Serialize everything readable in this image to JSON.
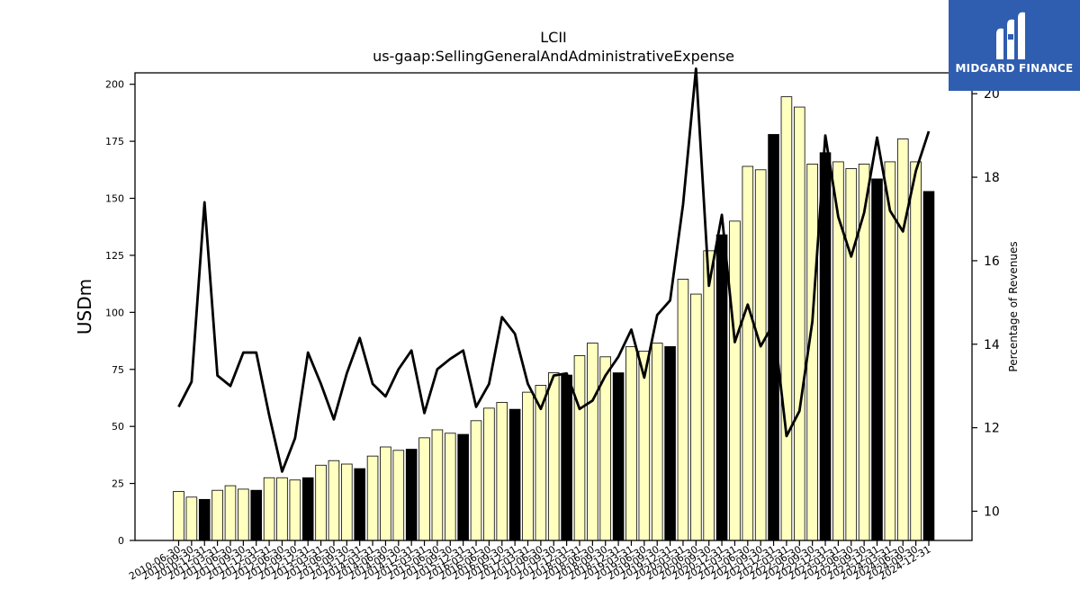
{
  "brand": {
    "name": "MIDGARD FINANCE",
    "icon": "midgard-logo-icon",
    "background": "#2f5db0"
  },
  "chart_data": {
    "type": "bar",
    "title": "LCII",
    "subtitle": "us-gaap:SellingGeneralAndAdministrativeExpense",
    "ylabel": "USDm",
    "y2label": "Percentage of Revenues",
    "ylim": [
      0,
      205
    ],
    "y2lim": [
      9.3,
      20.5
    ],
    "yticks": [
      0,
      25,
      50,
      75,
      100,
      125,
      150,
      175,
      200
    ],
    "y2ticks": [
      10,
      12,
      14,
      16,
      18,
      20
    ],
    "colors": {
      "quarter_bar": "#ffffc0",
      "annual_bar": "#000000",
      "line": "#000000"
    },
    "categories": [
      "2010-06-30",
      "2010-09-30",
      "2010-12-31",
      "2011-03-31",
      "2011-06-30",
      "2011-09-30",
      "2011-12-31",
      "2012-03-31",
      "2012-06-30",
      "2012-09-30",
      "2012-12-31",
      "2013-03-31",
      "2013-06-30",
      "2013-09-30",
      "2013-12-31",
      "2014-03-31",
      "2014-06-30",
      "2014-09-30",
      "2014-12-31",
      "2015-03-31",
      "2015-06-30",
      "2015-09-30",
      "2015-12-31",
      "2016-03-31",
      "2016-06-30",
      "2016-09-30",
      "2016-12-31",
      "2017-03-31",
      "2017-06-30",
      "2017-09-30",
      "2017-12-31",
      "2018-03-31",
      "2018-06-30",
      "2018-09-30",
      "2018-12-31",
      "2019-03-31",
      "2019-06-30",
      "2019-09-30",
      "2019-12-31",
      "2020-03-31",
      "2020-06-30",
      "2020-09-30",
      "2020-12-31",
      "2021-03-31",
      "2021-06-30",
      "2021-09-30",
      "2021-12-31",
      "2022-03-31",
      "2022-06-30",
      "2022-09-30",
      "2022-12-31",
      "2023-03-31",
      "2023-06-30",
      "2023-09-30",
      "2023-12-31",
      "2024-03-31",
      "2024-06-30",
      "2024-09-30",
      "2024-12-31"
    ],
    "series": [
      {
        "kind": "bar",
        "values": [
          21.5,
          19,
          18,
          22,
          24,
          22.5,
          22,
          27.5,
          27.5,
          26.5,
          27.5,
          33,
          35,
          33.5,
          31.5,
          37,
          41,
          39.5,
          40,
          45,
          48.5,
          47,
          46.5,
          52.5,
          58,
          60.5,
          57.5,
          65,
          68,
          73.5,
          72.5,
          81,
          86.5,
          80.5,
          73.5,
          85,
          83,
          86.5,
          85,
          114.5,
          108,
          127,
          134,
          140,
          164,
          162.5,
          178,
          194.5,
          190,
          165,
          170,
          166,
          163,
          165,
          158.5,
          166,
          176,
          166,
          153
        ],
        "annual": [
          false,
          false,
          true,
          false,
          false,
          false,
          true,
          false,
          false,
          false,
          true,
          false,
          false,
          false,
          true,
          false,
          false,
          false,
          true,
          false,
          false,
          false,
          true,
          false,
          false,
          false,
          true,
          false,
          false,
          false,
          true,
          false,
          false,
          false,
          true,
          false,
          false,
          false,
          true,
          false,
          false,
          false,
          true,
          false,
          false,
          false,
          true,
          false,
          false,
          false,
          true,
          false,
          false,
          false,
          true,
          false,
          false,
          false,
          true
        ]
      },
      {
        "kind": "line",
        "axis": "right",
        "values": [
          12.5,
          13.1,
          17.4,
          13.25,
          13.0,
          13.8,
          13.8,
          12.3,
          10.95,
          11.75,
          13.8,
          13.05,
          12.2,
          13.3,
          14.15,
          13.05,
          12.75,
          13.4,
          13.85,
          12.35,
          13.4,
          13.65,
          13.85,
          12.5,
          13.05,
          14.65,
          14.25,
          13.05,
          12.45,
          13.25,
          13.3,
          12.45,
          12.65,
          13.25,
          13.7,
          14.35,
          13.2,
          14.7,
          15.05,
          17.35,
          20.6,
          15.4,
          17.1,
          14.05,
          14.95,
          13.95,
          14.5,
          11.8,
          12.4,
          14.55,
          19.0,
          17.05,
          16.1,
          17.15,
          18.95,
          17.2,
          16.7,
          18.15,
          19.1
        ]
      }
    ]
  }
}
